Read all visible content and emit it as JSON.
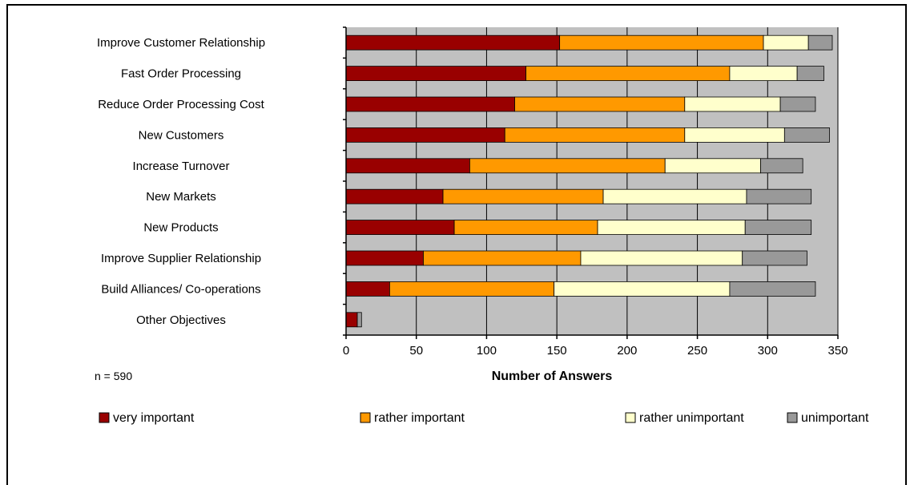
{
  "chart_data": {
    "type": "bar",
    "orientation": "horizontal",
    "stacked": true,
    "categories": [
      "Improve Customer Relationship",
      "Fast Order Processing",
      "Reduce Order Processing Cost",
      "New Customers",
      "Increase Turnover",
      "New Markets",
      "New Products",
      "Improve Supplier Relationship",
      "Build Alliances/ Co-operations",
      "Other Objectives"
    ],
    "series": [
      {
        "name": "very important",
        "color": "#990000",
        "values": [
          152,
          128,
          120,
          113,
          88,
          69,
          77,
          55,
          31,
          8
        ]
      },
      {
        "name": "rather important",
        "color": "#FF9900",
        "values": [
          145,
          145,
          121,
          128,
          139,
          114,
          102,
          112,
          117,
          0
        ]
      },
      {
        "name": "rather unimportant",
        "color": "#FFFFCC",
        "values": [
          32,
          48,
          68,
          71,
          68,
          102,
          105,
          115,
          125,
          0
        ]
      },
      {
        "name": "unimportant",
        "color": "#999999",
        "values": [
          17,
          19,
          25,
          32,
          30,
          46,
          47,
          46,
          61,
          3
        ]
      }
    ],
    "xlabel": "Number of Answers",
    "ylabel": "",
    "xlim": [
      0,
      350
    ],
    "xticks": [
      0,
      50,
      100,
      150,
      200,
      250,
      300,
      350
    ],
    "grid": true,
    "legend": "bottom",
    "plot_background": "#C0C0C0",
    "gridline_color": "#000000"
  },
  "note": "n = 590"
}
